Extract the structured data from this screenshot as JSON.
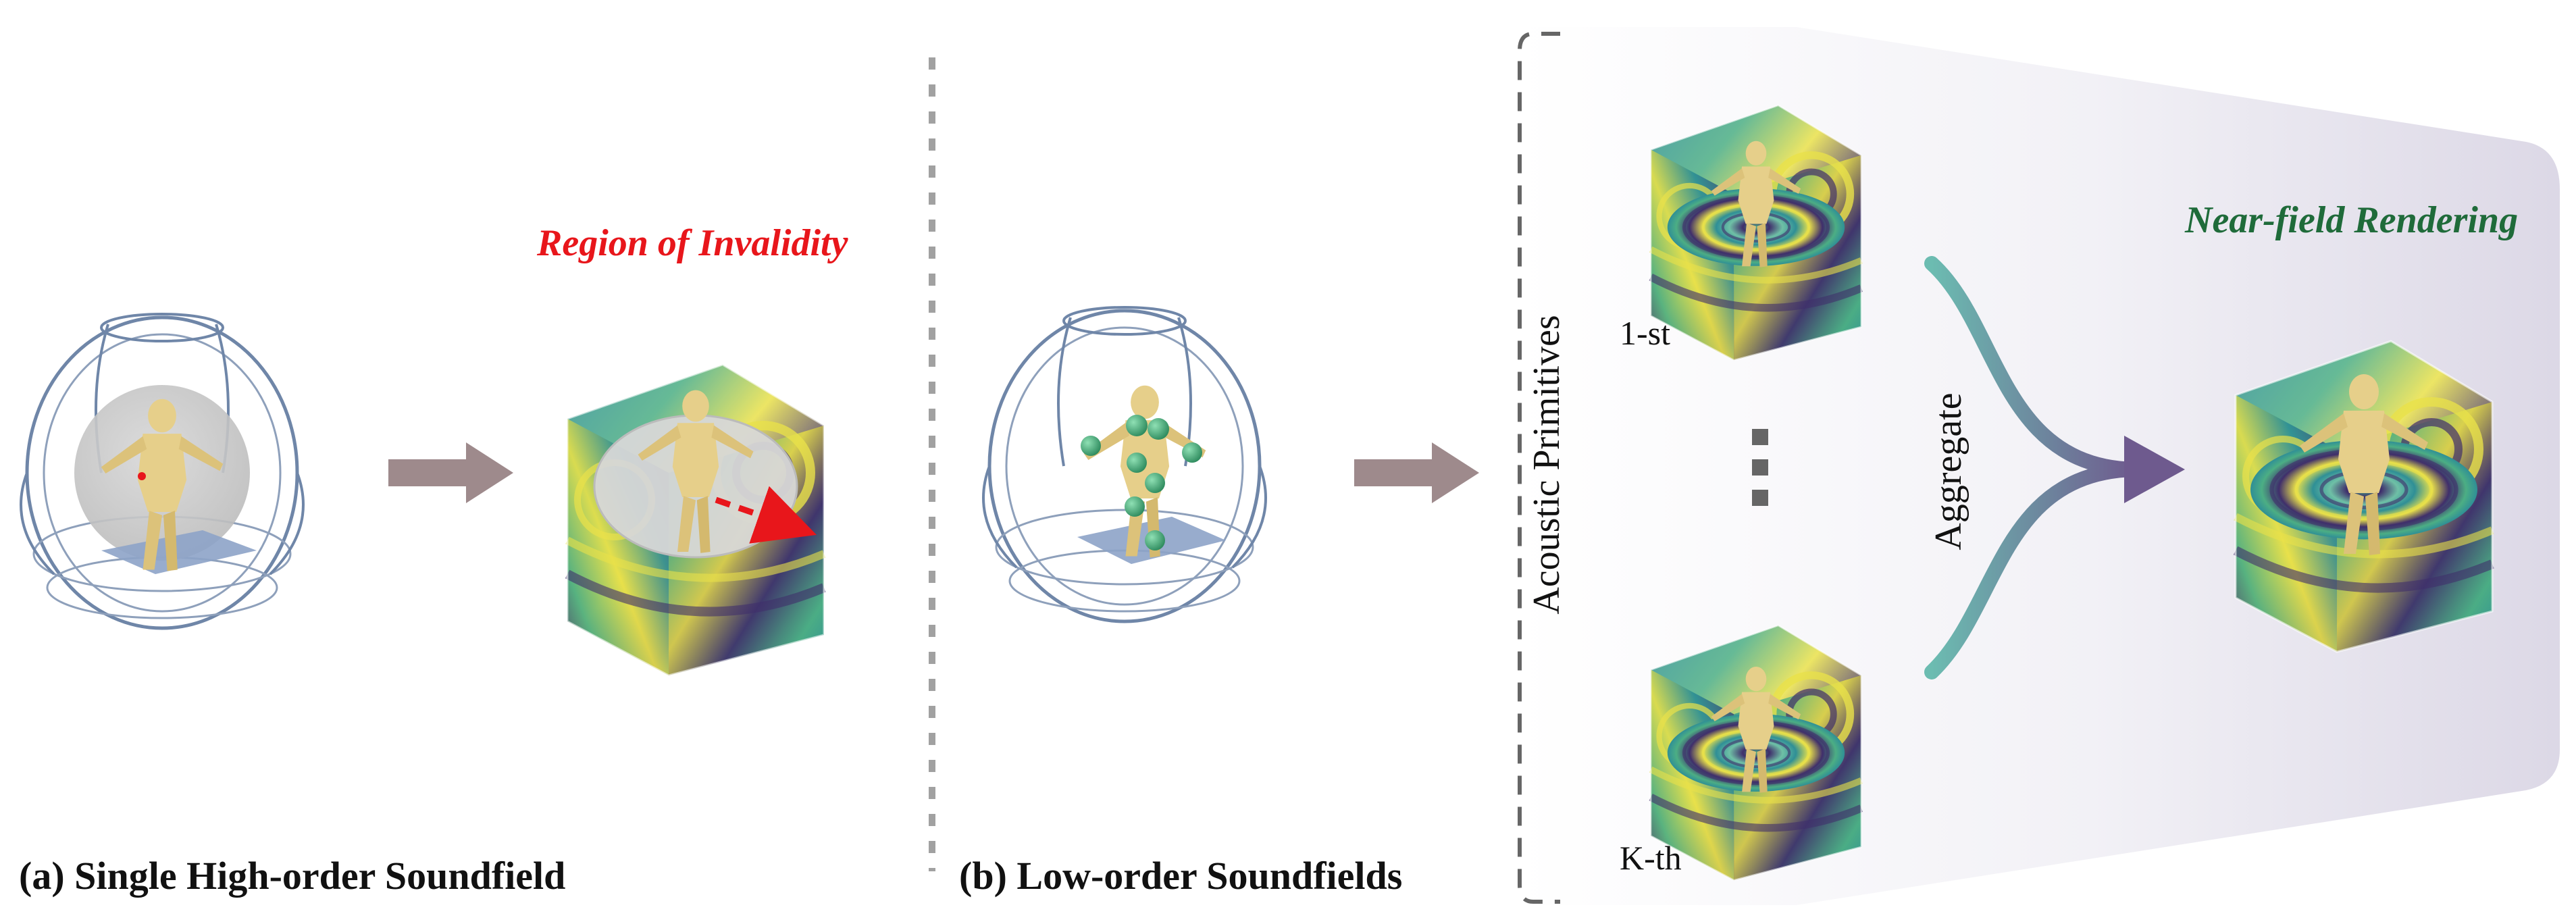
{
  "panel_a": {
    "caption": "(a) Single High-order Soundfield",
    "title": "Region of Invalidity",
    "title_color": "#e8161b"
  },
  "panel_b": {
    "caption": "(b) Low-order Soundfields",
    "vertical_label": "Acoustic Primitives",
    "first_label": "1-st",
    "kth_label": "K-th",
    "aggregate_label": "Aggregate",
    "result_title": "Near-field Rendering",
    "result_color": "#1f6b3a"
  },
  "colors": {
    "arrow": "#9e8a8c",
    "cage": "#6f86a8",
    "human": "#e6cf8a",
    "floor": "#8da3c8",
    "teal": "#6cbcb1",
    "purple": "#6e5a8e",
    "field_yellow": "#e9e14a",
    "field_green": "#4cae84",
    "field_purple": "#3f2e6b",
    "field_teal": "#2f8f96",
    "primitive_green": "#3aa774"
  }
}
